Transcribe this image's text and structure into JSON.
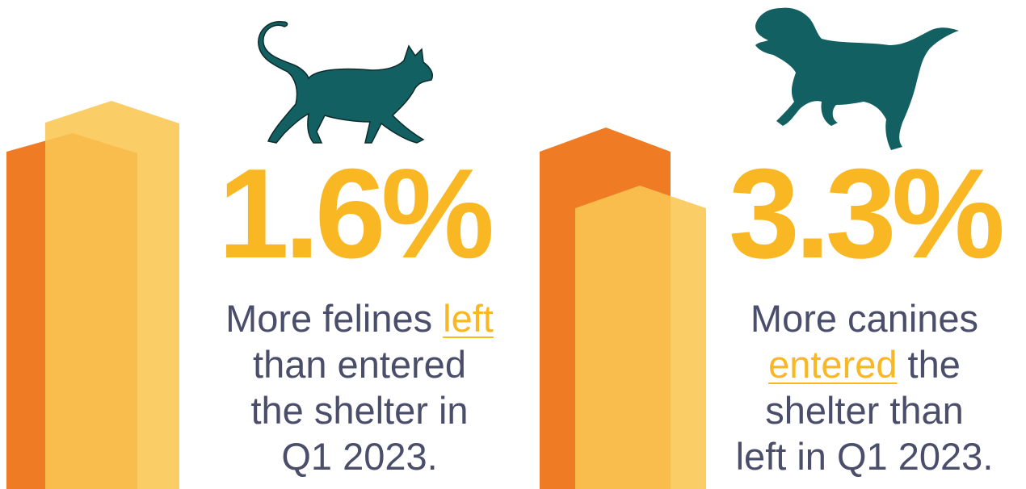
{
  "colors": {
    "orange_dark": "#ef7b25",
    "orange_mid": "#f5a623",
    "yellow_light": "#f9c652",
    "stat_yellow": "#f9b823",
    "teal": "#136063",
    "text": "#4a4e6b"
  },
  "cats": {
    "icon": "cat-silhouette-icon",
    "stat": "1.6%",
    "line1_prefix": "More felines ",
    "line1_highlight": "left",
    "line2": "than entered",
    "line3": "the shelter in",
    "line4": "Q1 2023."
  },
  "dogs": {
    "icon": "dog-silhouette-icon",
    "stat": "3.3%",
    "line1": "More canines",
    "line2_highlight": "entered",
    "line2_suffix": " the",
    "line3": "shelter than",
    "line4": "left in Q1 2023."
  }
}
